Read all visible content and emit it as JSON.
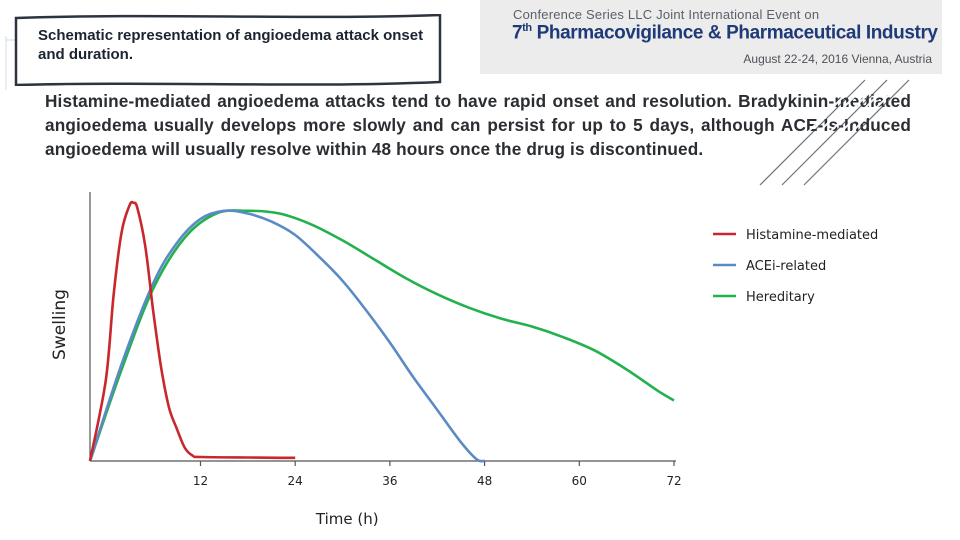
{
  "slide": {
    "title": "Schematic representation of angioedema attack onset and duration.",
    "paragraph": "Histamine-mediated angioedema attacks tend to have rapid onset and resolution. Bradykinin-mediated angioedema usually develops more slowly and can persist for up to 5 days, although ACE-Is-Induced angioedema will usually resolve within 48 hours once the drug is discontinued."
  },
  "conference": {
    "line1": "Conference Series LLC Joint International Event on",
    "line2_num": "7",
    "line2_sup": "th",
    "line2_text": " Pharmacovigilance & Pharmaceutical Industry",
    "line3": "August 22-24, 2016   Vienna, Austria"
  },
  "colors": {
    "histamine": "#c8282c",
    "acei": "#5b8ac4",
    "hereditary": "#22b14c",
    "title_text": "#1b2430",
    "conference_blue": "#1e3a78"
  },
  "chart_data": {
    "type": "line",
    "title": "",
    "xlabel": "Time (h)",
    "ylabel": "Swelling",
    "xlim": [
      -2,
      72
    ],
    "ylim": [
      0,
      100
    ],
    "xticks": [
      12,
      24,
      36,
      48,
      60,
      72
    ],
    "grid": false,
    "legend_position": "top-right",
    "series": [
      {
        "name": "Histamine-mediated",
        "color": "#c8282c",
        "points": [
          [
            -2,
            0
          ],
          [
            0,
            30
          ],
          [
            1,
            62
          ],
          [
            2,
            85
          ],
          [
            3,
            95
          ],
          [
            3.5,
            96
          ],
          [
            4,
            94
          ],
          [
            5,
            80
          ],
          [
            6,
            56
          ],
          [
            7,
            35
          ],
          [
            8,
            20
          ],
          [
            9,
            12
          ],
          [
            10,
            5
          ],
          [
            11,
            2
          ],
          [
            12,
            1.5
          ],
          [
            18,
            1.3
          ],
          [
            22,
            1.2
          ],
          [
            24,
            1.2
          ]
        ]
      },
      {
        "name": "ACEi-related",
        "color": "#5b8ac4",
        "points": [
          [
            -2,
            0
          ],
          [
            2,
            36
          ],
          [
            6,
            66
          ],
          [
            9,
            81
          ],
          [
            12,
            90
          ],
          [
            15,
            93
          ],
          [
            18,
            92
          ],
          [
            21,
            89
          ],
          [
            24,
            84
          ],
          [
            27,
            76
          ],
          [
            30,
            67
          ],
          [
            33,
            56
          ],
          [
            36,
            44
          ],
          [
            39,
            31
          ],
          [
            42,
            19
          ],
          [
            45,
            7
          ],
          [
            47,
            0.6
          ],
          [
            48,
            0
          ]
        ]
      },
      {
        "name": "Hereditary",
        "color": "#22b14c",
        "points": [
          [
            -2,
            0
          ],
          [
            2,
            34
          ],
          [
            6,
            64
          ],
          [
            10,
            83
          ],
          [
            14,
            92
          ],
          [
            18,
            93
          ],
          [
            22,
            92
          ],
          [
            26,
            88
          ],
          [
            30,
            82
          ],
          [
            34,
            75
          ],
          [
            38,
            68
          ],
          [
            42,
            62
          ],
          [
            46,
            57
          ],
          [
            50,
            53
          ],
          [
            54,
            50
          ],
          [
            58,
            46
          ],
          [
            62,
            41
          ],
          [
            66,
            34
          ],
          [
            70,
            26
          ],
          [
            72,
            22.5
          ]
        ]
      }
    ]
  }
}
